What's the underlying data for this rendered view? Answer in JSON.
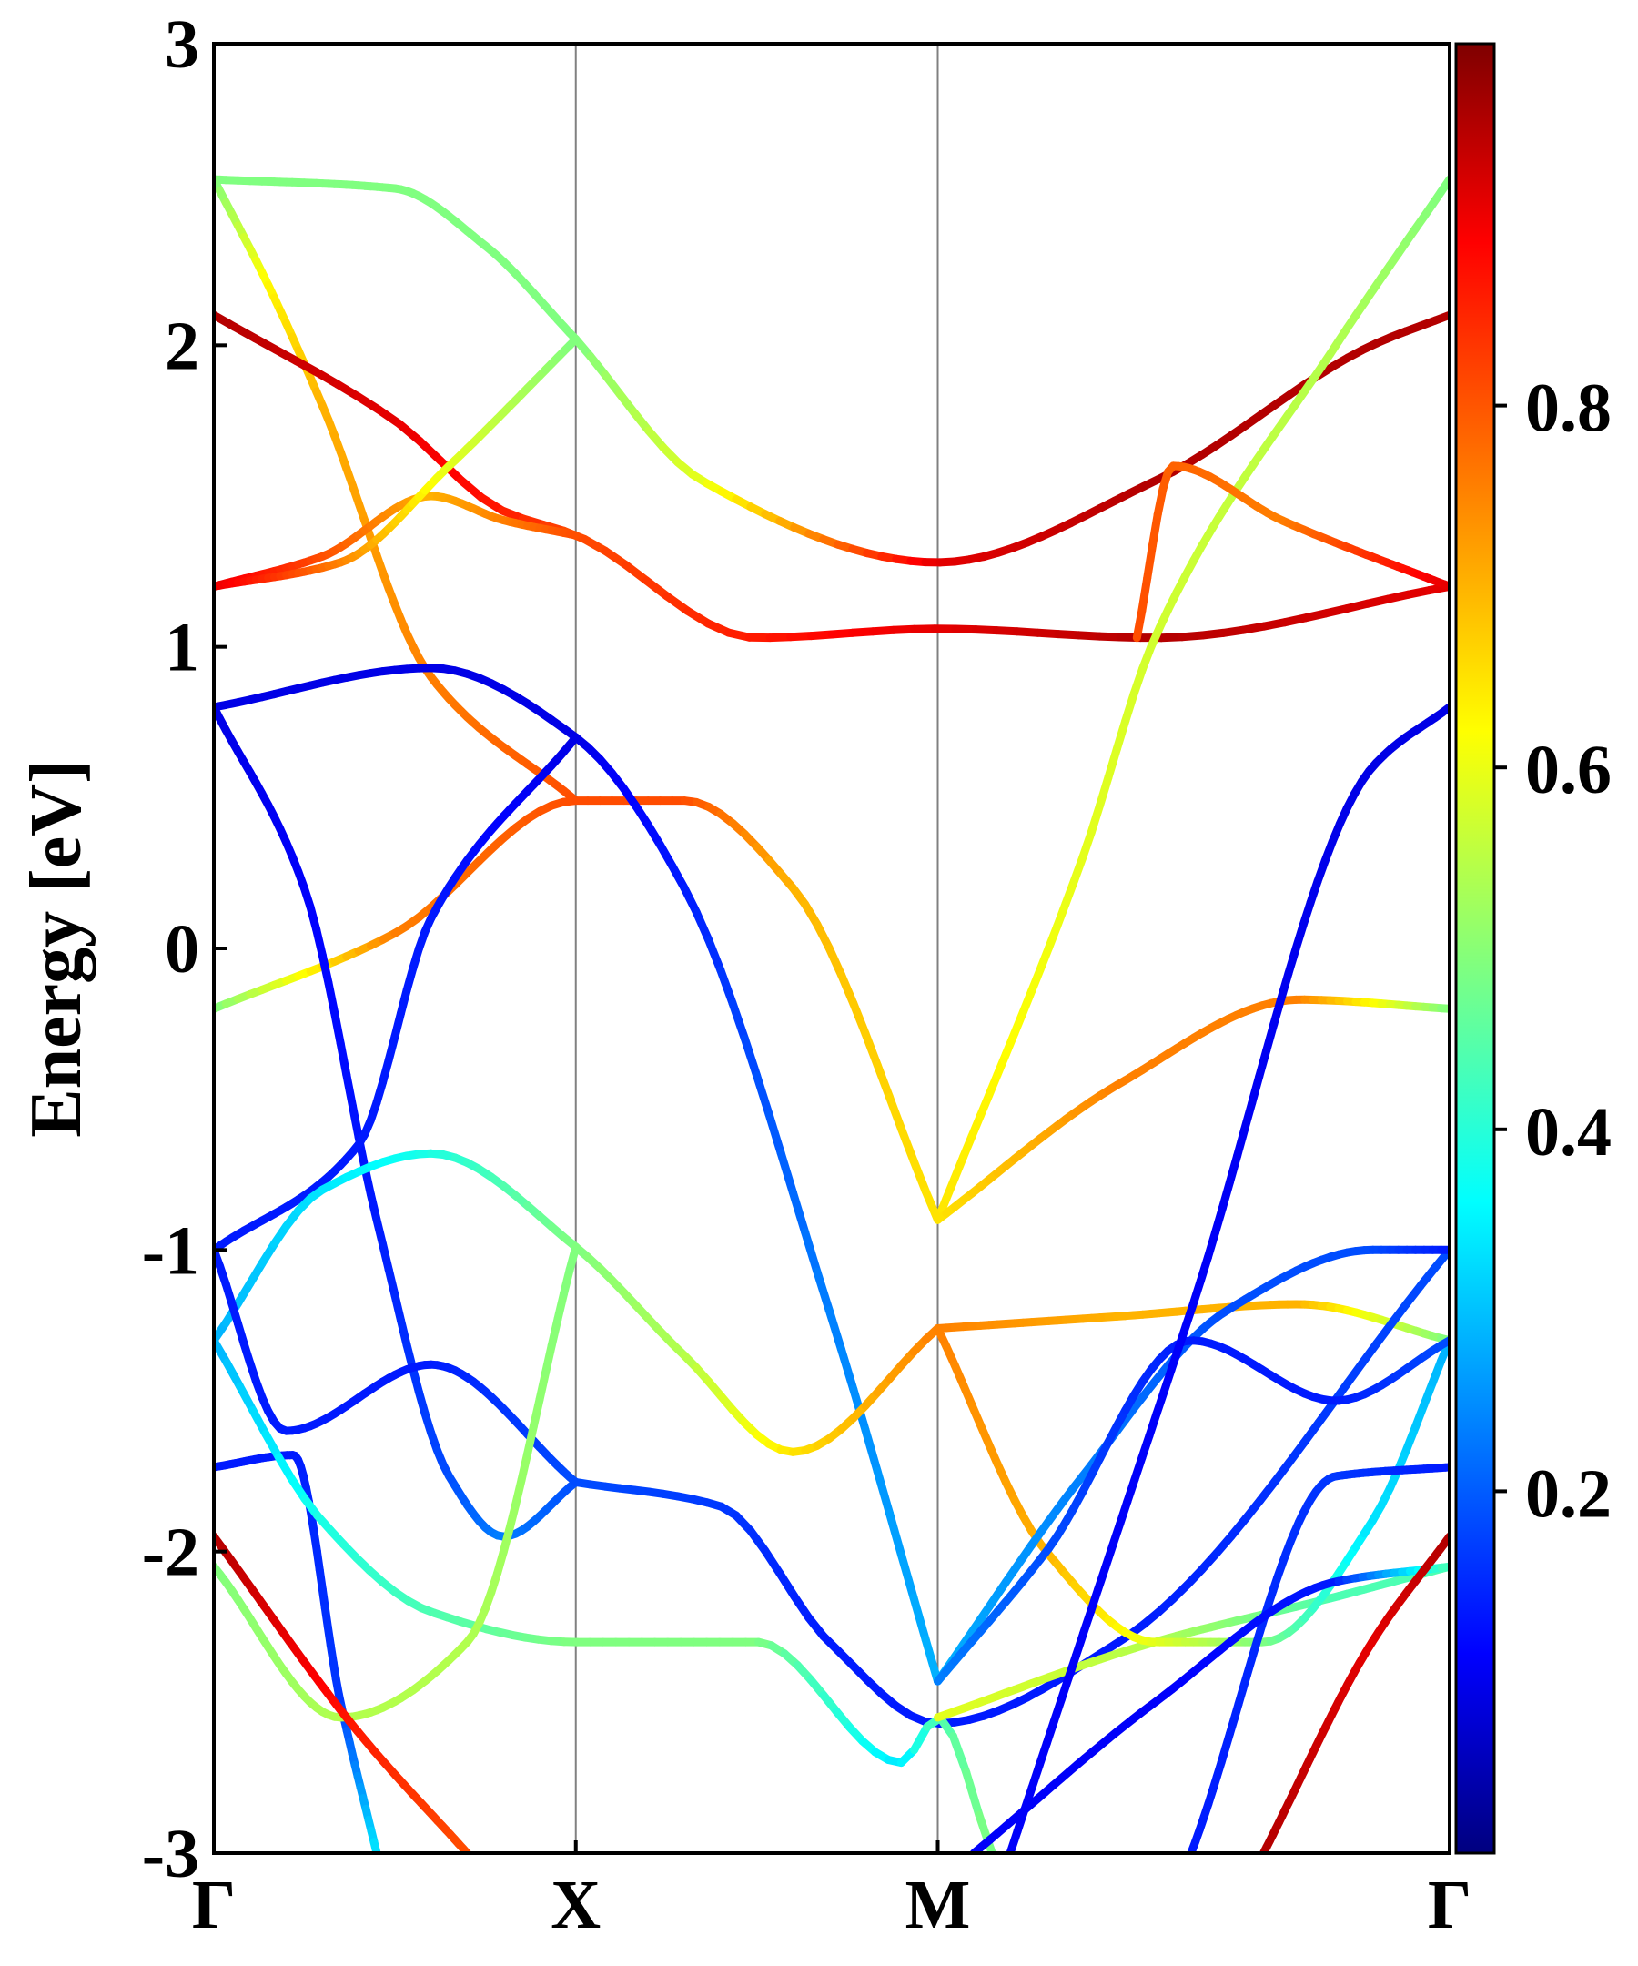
{
  "chart_data": {
    "type": "line",
    "title": "",
    "xlabel": "",
    "ylabel": "Energy [eV]",
    "ylim": [
      -3,
      3
    ],
    "y_ticks": [
      {
        "value": 3,
        "label": "3"
      },
      {
        "value": 2,
        "label": "2"
      },
      {
        "value": 1,
        "label": "1"
      },
      {
        "value": 0,
        "label": "0"
      },
      {
        "value": -1,
        "label": "-1"
      },
      {
        "value": -2,
        "label": "-2"
      },
      {
        "value": -3,
        "label": "-3"
      }
    ],
    "k_points": [
      {
        "position": 0,
        "label": "Γ"
      },
      {
        "position": 1,
        "label": "X"
      },
      {
        "position": 2,
        "label": "M"
      },
      {
        "position": 3.4142,
        "label": "Γ"
      }
    ],
    "colorbar": {
      "colormap": "jet",
      "range": [
        0,
        1
      ],
      "ticks": [
        {
          "value": 0.2,
          "label": "0.2"
        },
        {
          "value": 0.4,
          "label": "0.4"
        },
        {
          "value": 0.6,
          "label": "0.6"
        },
        {
          "value": 0.8,
          "label": "0.8"
        }
      ]
    },
    "grid": false,
    "series": [
      {
        "points": [
          [
            0,
            2.55,
            0.5
          ],
          [
            0.5,
            2.52,
            0.5
          ],
          [
            0.75,
            2.33,
            0.5
          ],
          [
            1,
            2.02,
            0.5
          ]
        ]
      },
      {
        "points": [
          [
            1,
            2.02,
            0.5
          ],
          [
            1.35,
            1.55,
            0.6
          ],
          [
            2,
            1.28,
            0.9
          ],
          [
            2.6,
            1.55,
            0.95
          ],
          [
            3.2,
            2.0,
            0.95
          ],
          [
            3.4142,
            2.1,
            0.95
          ]
        ]
      },
      {
        "points": [
          [
            0,
            2.55,
            0.5
          ],
          [
            0.15,
            2.2,
            0.63
          ],
          [
            0.3,
            1.8,
            0.7
          ],
          [
            0.6,
            0.9,
            0.75
          ],
          [
            1,
            0.49,
            0.8
          ]
        ]
      },
      {
        "points": [
          [
            0,
            2.1,
            0.95
          ],
          [
            0.5,
            1.75,
            0.9
          ],
          [
            0.8,
            1.45,
            0.85
          ],
          [
            1,
            1.37,
            0.8
          ],
          [
            1.5,
            1.03,
            0.85
          ],
          [
            2,
            1.06,
            0.9
          ],
          [
            2.6,
            1.03,
            0.95
          ],
          [
            3.4142,
            1.2,
            0.9
          ]
        ]
      },
      {
        "points": [
          [
            0,
            1.2,
            0.9
          ],
          [
            0.3,
            1.3,
            0.8
          ],
          [
            0.6,
            1.5,
            0.7
          ],
          [
            0.8,
            1.42,
            0.75
          ],
          [
            1,
            1.37,
            0.8
          ]
        ]
      },
      {
        "points": [
          [
            0,
            1.2,
            0.9
          ],
          [
            0.35,
            1.28,
            0.75
          ],
          [
            0.65,
            1.6,
            0.6
          ],
          [
            1,
            2.02,
            0.5
          ]
        ]
      },
      {
        "points": [
          [
            2,
            -0.9,
            0.65
          ],
          [
            2.4,
            0.3,
            0.6
          ],
          [
            2.6,
            1.03,
            0.58
          ],
          [
            3.1,
            2.0,
            0.55
          ],
          [
            3.4142,
            2.55,
            0.5
          ]
        ]
      },
      {
        "points": [
          [
            2,
            -0.9,
            0.65
          ],
          [
            2.5,
            -0.45,
            0.75
          ],
          [
            3.0,
            -0.17,
            0.75
          ],
          [
            3.4142,
            -0.2,
            0.5
          ]
        ]
      },
      {
        "points": [
          [
            0,
            -0.2,
            0.5
          ],
          [
            0.5,
            0.05,
            0.75
          ],
          [
            1,
            0.49,
            0.8
          ],
          [
            1.3,
            0.49,
            0.8
          ],
          [
            1.6,
            0.2,
            0.7
          ],
          [
            2,
            -0.9,
            0.65
          ]
        ]
      },
      {
        "points": [
          [
            2.55,
            1.03,
            0.8
          ],
          [
            2.65,
            1.6,
            0.78
          ],
          [
            2.95,
            1.42,
            0.75
          ],
          [
            3.4142,
            1.2,
            0.9
          ]
        ]
      },
      {
        "points": [
          [
            0,
            0.8,
            0.1
          ],
          [
            0.6,
            0.93,
            0.1
          ],
          [
            1,
            0.7,
            0.1
          ],
          [
            1.3,
            0.2,
            0.15
          ],
          [
            1.7,
            -1.2,
            0.25
          ],
          [
            2,
            -2.43,
            0.3
          ]
        ]
      },
      {
        "points": [
          [
            0,
            0.8,
            0.1
          ],
          [
            0.25,
            0.2,
            0.12
          ],
          [
            0.45,
            -0.9,
            0.15
          ],
          [
            0.65,
            -1.75,
            0.2
          ],
          [
            0.8,
            -1.95,
            0.25
          ],
          [
            1,
            -1.77,
            0.2
          ]
        ]
      },
      {
        "points": [
          [
            0,
            -1.0,
            0.15
          ],
          [
            0.4,
            -0.65,
            0.15
          ],
          [
            0.6,
            0.1,
            0.15
          ],
          [
            1,
            0.7,
            0.1
          ]
        ]
      },
      {
        "points": [
          [
            0,
            -1.3,
            0.3
          ],
          [
            0.3,
            -0.8,
            0.35
          ],
          [
            0.6,
            -0.68,
            0.4
          ],
          [
            1,
            -0.99,
            0.5
          ],
          [
            1.3,
            -1.35,
            0.55
          ],
          [
            1.6,
            -1.67,
            0.65
          ],
          [
            2,
            -1.26,
            0.75
          ]
        ]
      },
      {
        "points": [
          [
            2,
            -1.26,
            0.75
          ],
          [
            2.5,
            -1.22,
            0.7
          ],
          [
            3.0,
            -1.18,
            0.7
          ],
          [
            3.4142,
            -1.3,
            0.5
          ]
        ]
      },
      {
        "points": [
          [
            1,
            -1.77,
            0.2
          ],
          [
            1.4,
            -1.85,
            0.18
          ],
          [
            1.7,
            -2.3,
            0.15
          ],
          [
            2,
            -2.57,
            0.15
          ],
          [
            2.5,
            -2.3,
            0.15
          ],
          [
            3.4142,
            -1.0,
            0.2
          ]
        ]
      },
      {
        "points": [
          [
            0,
            -1.0,
            0.15
          ],
          [
            0.2,
            -1.6,
            0.15
          ],
          [
            0.6,
            -1.38,
            0.15
          ],
          [
            1,
            -1.77,
            0.2
          ]
        ]
      },
      {
        "points": [
          [
            0,
            -1.72,
            0.15
          ],
          [
            0.22,
            -1.68,
            0.15
          ],
          [
            0.35,
            -2.5,
            0.18
          ],
          [
            0.45,
            -3.0,
            0.35
          ]
        ]
      },
      {
        "points": [
          [
            0,
            -1.3,
            0.3
          ],
          [
            0.3,
            -1.9,
            0.4
          ],
          [
            0.6,
            -2.2,
            0.45
          ],
          [
            1,
            -2.3,
            0.5
          ],
          [
            1.5,
            -2.3,
            0.5
          ],
          [
            1.9,
            -2.7,
            0.35
          ],
          [
            2,
            -2.55,
            0.45
          ],
          [
            2.15,
            -3.0,
            0.5
          ]
        ]
      },
      {
        "points": [
          [
            0,
            -2.05,
            0.5
          ],
          [
            0.35,
            -2.55,
            0.55
          ],
          [
            0.7,
            -2.3,
            0.55
          ],
          [
            1,
            -0.99,
            0.5
          ]
        ]
      },
      {
        "points": [
          [
            0,
            -1.95,
            0.95
          ],
          [
            0.4,
            -2.6,
            0.85
          ],
          [
            0.7,
            -3.0,
            0.8
          ]
        ]
      },
      {
        "points": [
          [
            2,
            -2.55,
            0.6
          ],
          [
            2.6,
            -2.3,
            0.55
          ],
          [
            3.1,
            -2.15,
            0.45
          ],
          [
            3.4142,
            -2.05,
            0.45
          ]
        ]
      },
      {
        "points": [
          [
            2,
            -1.26,
            0.75
          ],
          [
            2.3,
            -2.0,
            0.7
          ],
          [
            2.6,
            -2.3,
            0.6
          ],
          [
            2.9,
            -2.3,
            0.5
          ],
          [
            3.2,
            -1.9,
            0.35
          ],
          [
            3.4142,
            -1.3,
            0.3
          ]
        ]
      },
      {
        "points": [
          [
            2,
            -2.43,
            0.3
          ],
          [
            2.4,
            -1.75,
            0.25
          ],
          [
            2.8,
            -1.2,
            0.2
          ],
          [
            3.2,
            -1.0,
            0.2
          ],
          [
            3.4142,
            -1.0,
            0.15
          ]
        ]
      },
      {
        "points": [
          [
            2,
            -2.43,
            0.25
          ],
          [
            2.3,
            -2.0,
            0.2
          ],
          [
            2.7,
            -1.3,
            0.15
          ],
          [
            3.1,
            -1.5,
            0.15
          ],
          [
            3.4142,
            -1.3,
            0.2
          ]
        ]
      },
      {
        "points": [
          [
            2.2,
            -3.0,
            0.12
          ],
          [
            2.7,
            -1.2,
            0.12
          ],
          [
            3.2,
            0.6,
            0.1
          ],
          [
            3.4142,
            0.8,
            0.1
          ]
        ]
      },
      {
        "points": [
          [
            2.7,
            -3.0,
            0.15
          ],
          [
            3.1,
            -1.75,
            0.18
          ],
          [
            3.4142,
            -1.72,
            0.15
          ]
        ]
      },
      {
        "points": [
          [
            2.1,
            -3.0,
            0.12
          ],
          [
            2.6,
            -2.5,
            0.12
          ],
          [
            3.1,
            -2.1,
            0.15
          ],
          [
            3.4142,
            -2.05,
            0.45
          ]
        ]
      },
      {
        "points": [
          [
            2.9,
            -3.0,
            0.95
          ],
          [
            3.2,
            -2.3,
            0.9
          ],
          [
            3.4142,
            -1.95,
            0.95
          ]
        ]
      }
    ]
  }
}
